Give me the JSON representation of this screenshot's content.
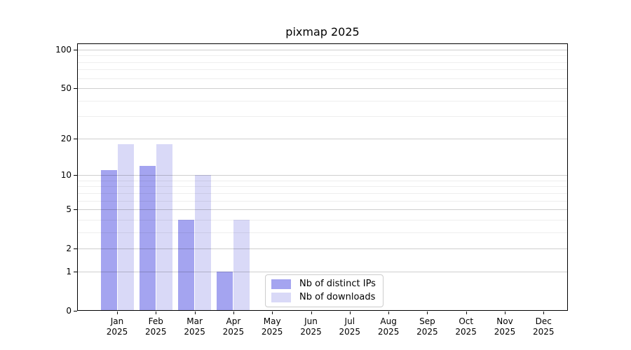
{
  "figure_title": "pixmap 2025",
  "chart_data": {
    "type": "bar",
    "title": "pixmap 2025",
    "categories": [
      {
        "month": "Jan",
        "year": "2025"
      },
      {
        "month": "Feb",
        "year": "2025"
      },
      {
        "month": "Mar",
        "year": "2025"
      },
      {
        "month": "Apr",
        "year": "2025"
      },
      {
        "month": "May",
        "year": "2025"
      },
      {
        "month": "Jun",
        "year": "2025"
      },
      {
        "month": "Jul",
        "year": "2025"
      },
      {
        "month": "Aug",
        "year": "2025"
      },
      {
        "month": "Sep",
        "year": "2025"
      },
      {
        "month": "Oct",
        "year": "2025"
      },
      {
        "month": "Nov",
        "year": "2025"
      },
      {
        "month": "Dec",
        "year": "2025"
      }
    ],
    "series": [
      {
        "name": "Nb of distinct IPs",
        "color": "#a4a4f0",
        "values": [
          11,
          12,
          4,
          1,
          0,
          0,
          0,
          0,
          0,
          0,
          0,
          0
        ]
      },
      {
        "name": "Nb of downloads",
        "color": "#d9d9f7",
        "values": [
          18,
          18,
          10,
          4,
          0,
          0,
          0,
          0,
          0,
          0,
          0,
          0
        ]
      }
    ],
    "xlabel": "",
    "ylabel": "",
    "yscale": "log10(1+y)",
    "ylim": [
      0,
      111
    ],
    "y_major_ticks": [
      0,
      1,
      2,
      5,
      10,
      20,
      50,
      100
    ],
    "y_minor_ticks": [
      3,
      4,
      6,
      7,
      8,
      9,
      30,
      40,
      60,
      70,
      80,
      90
    ],
    "grid": true,
    "legend": {
      "position": "lower center"
    }
  }
}
